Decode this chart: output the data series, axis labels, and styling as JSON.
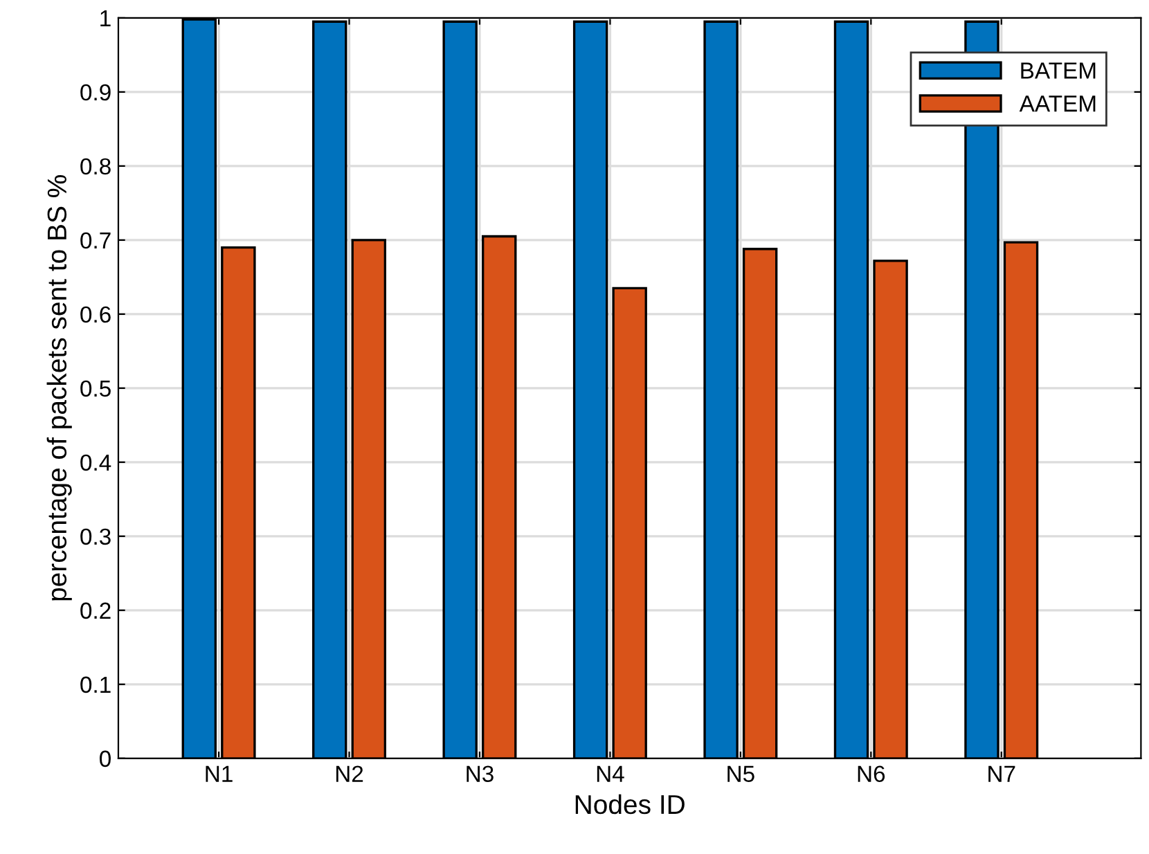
{
  "chart_data": {
    "type": "bar",
    "xlabel": "Nodes ID",
    "ylabel": "percentage of packets sent to BS %",
    "categories": [
      "N1",
      "N2",
      "N3",
      "N4",
      "N5",
      "N6",
      "N7"
    ],
    "series": [
      {
        "name": "BATEM",
        "color": "#0072bd",
        "values": [
          0.998,
          0.995,
          0.995,
          0.995,
          0.995,
          0.995,
          0.995
        ]
      },
      {
        "name": "AATEM",
        "color": "#d95319",
        "values": [
          0.69,
          0.7,
          0.705,
          0.635,
          0.688,
          0.672,
          0.697
        ]
      }
    ],
    "ylim": [
      0,
      1
    ],
    "yticks": [
      0,
      0.1,
      0.2,
      0.3,
      0.4,
      0.5,
      0.6,
      0.7,
      0.8,
      0.9,
      1
    ],
    "grid": true,
    "legend": "top right"
  }
}
